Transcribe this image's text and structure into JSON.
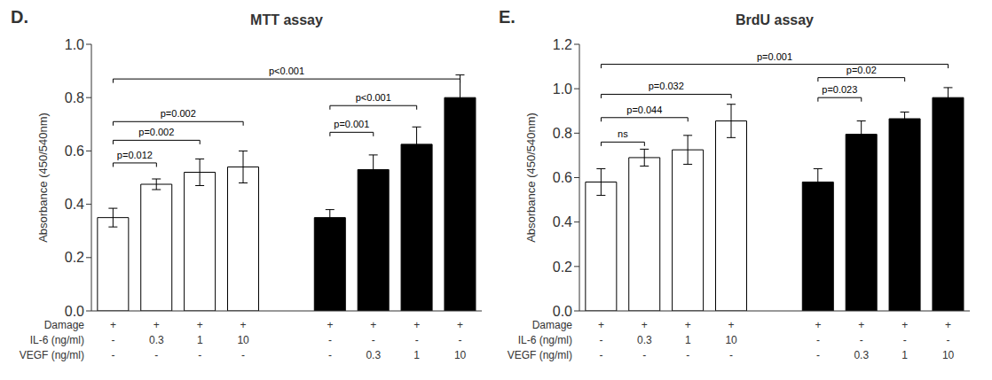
{
  "chart_data": [
    {
      "type": "bar",
      "panel_label": "D.",
      "title": "MTT assay",
      "ylabel": "Absorbance (450/540nm)",
      "categories": [
        null,
        null,
        null,
        null,
        null,
        null,
        null,
        null
      ],
      "values": [
        0.35,
        0.475,
        0.52,
        0.54,
        0.35,
        0.53,
        0.625,
        0.8
      ],
      "errors": [
        0.035,
        0.02,
        0.05,
        0.06,
        0.03,
        0.055,
        0.065,
        0.085
      ],
      "colors": [
        "white",
        "white",
        "white",
        "white",
        "black",
        "black",
        "black",
        "black"
      ],
      "ylim": [
        0,
        1.0
      ],
      "yticks": [
        {
          "value": 0,
          "label": "0.0"
        },
        0.2,
        0.4,
        0.6,
        0.8,
        {
          "value": 1.0,
          "label": "1.0"
        }
      ],
      "tick_labels": "y",
      "annotations": [
        {
          "text": "p=0.012",
          "x1": 0,
          "x2": 1,
          "y": 0.555
        },
        {
          "text": "p=0.002",
          "x1": 0,
          "x2": 2,
          "y": 0.64
        },
        {
          "text": "p=0.002",
          "x1": 0,
          "x2": 3,
          "y": 0.71
        },
        {
          "text": "p=0.001",
          "x1": 4,
          "x2": 5,
          "y": 0.67
        },
        {
          "text": "p<0.001",
          "x1": 4,
          "x2": 6,
          "y": 0.77
        },
        {
          "text": "p<0.001",
          "x1": 0,
          "x2": 7,
          "y": 0.87
        }
      ],
      "table": [
        {
          "label": "Damage",
          "values": [
            "+",
            "+",
            "+",
            "+",
            "+",
            "+",
            "+",
            "+"
          ]
        },
        {
          "label": "IL-6 (ng/ml)",
          "values": [
            "-",
            "0.3",
            "1",
            "10",
            "-",
            "-",
            "-",
            "-"
          ]
        },
        {
          "label": "VEGF (ng/ml)",
          "values": [
            "-",
            "-",
            "-",
            "-",
            "-",
            "0.3",
            "1",
            "10"
          ]
        }
      ]
    },
    {
      "type": "bar",
      "panel_label": "E.",
      "title": "BrdU assay",
      "ylabel": "Absorbance (450/540nm)",
      "categories": [
        null,
        null,
        null,
        null,
        null,
        null,
        null,
        null
      ],
      "values": [
        0.58,
        0.69,
        0.725,
        0.855,
        0.58,
        0.795,
        0.865,
        0.96
      ],
      "errors": [
        0.06,
        0.038,
        0.065,
        0.075,
        0.06,
        0.06,
        0.03,
        0.045
      ],
      "colors": [
        "white",
        "white",
        "white",
        "white",
        "black",
        "black",
        "black",
        "black"
      ],
      "ylim": [
        0,
        1.2
      ],
      "yticks": [
        {
          "value": 0,
          "label": "0.0"
        },
        0.2,
        0.4,
        0.6,
        0.8,
        {
          "value": 1.0,
          "label": "1.0"
        },
        1.2
      ],
      "tick_labels": "y",
      "annotations": [
        {
          "text": "ns",
          "x1": 0,
          "x2": 1,
          "y": 0.76
        },
        {
          "text": "p=0.044",
          "x1": 0,
          "x2": 2,
          "y": 0.87
        },
        {
          "text": "p=0.032",
          "x1": 0,
          "x2": 3,
          "y": 0.975
        },
        {
          "text": "p=0.023",
          "x1": 4,
          "x2": 5,
          "y": 0.96
        },
        {
          "text": "p=0.02",
          "x1": 4,
          "x2": 6,
          "y": 1.05
        },
        {
          "text": "p=0.001",
          "x1": 0,
          "x2": 7,
          "y": 1.11
        }
      ],
      "table": [
        {
          "label": "Damage",
          "values": [
            "+",
            "+",
            "+",
            "+",
            "+",
            "+",
            "+",
            "+"
          ]
        },
        {
          "label": "IL-6 (ng/ml)",
          "values": [
            "-",
            "0.3",
            "1",
            "10",
            "-",
            "-",
            "-",
            "-"
          ]
        },
        {
          "label": "VEGF (ng/ml)",
          "values": [
            "-",
            "-",
            "-",
            "-",
            "-",
            "0.3",
            "1",
            "10"
          ]
        }
      ]
    }
  ]
}
